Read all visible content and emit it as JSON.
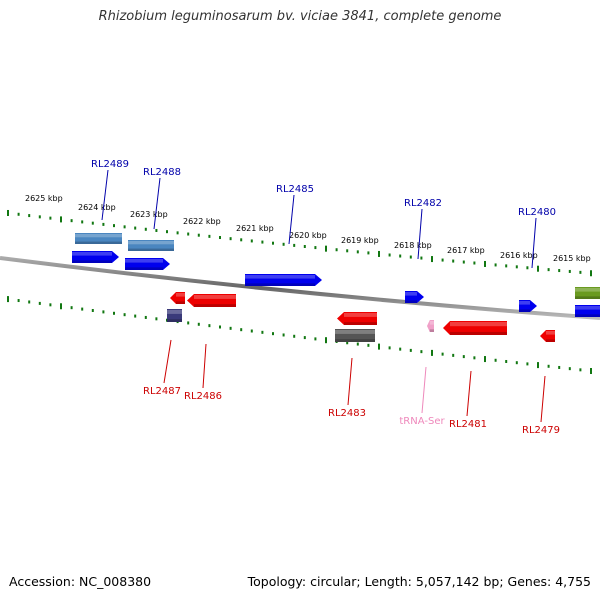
{
  "title": "Rhizobium leguminosarum bv. viciae 3841, complete genome",
  "footer": {
    "accession": "Accession: NC_008380",
    "summary": "Topology: circular; Length: 5,057,142 bp; Genes: 4,755"
  },
  "scale_labels": [
    "2625 kbp",
    "2624 kbp",
    "2623 kbp",
    "2622 kbp",
    "2621 kbp",
    "2620 kbp",
    "2619 kbp",
    "2618 kbp",
    "2617 kbp",
    "2616 kbp",
    "2615 kbp"
  ],
  "colors": {
    "forward_gene": "#0000ee",
    "forward_gene_alt": "#4a86c0",
    "reverse_gene": "#ee0000",
    "reverse_gene_alt": "#3a3a7a",
    "pseudo": "#555555",
    "trna": "#f0a0c8",
    "olive": "#6a9a20",
    "forward_label": "#0000aa",
    "reverse_label": "#cc0000",
    "trna_label": "#ee88bb",
    "ticks": "#117711"
  },
  "forward_labels": [
    {
      "name": "RL2489"
    },
    {
      "name": "RL2488"
    },
    {
      "name": "RL2485"
    },
    {
      "name": "RL2482"
    },
    {
      "name": "RL2480"
    }
  ],
  "reverse_labels": [
    {
      "name": "RL2487"
    },
    {
      "name": "RL2486"
    },
    {
      "name": "RL2483"
    },
    {
      "name": "tRNA-Ser",
      "type": "trna"
    },
    {
      "name": "RL2481"
    },
    {
      "name": "RL2479"
    }
  ]
}
